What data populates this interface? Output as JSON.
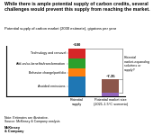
{
  "chart_data": {
    "type": "bar",
    "stacked": true,
    "title": "While there is ample potential supply of carbon credits, several challenges would prevent this supply from reaching the market.",
    "subtitle": "Potential supply of carbon market (2030 estimate), gigatons per year",
    "categories": [
      "Potential\nsupply",
      "Potential market size\n(2021-1.5°C scenario)"
    ],
    "series": [
      {
        "name": "Avoided emissions",
        "values": [
          40,
          null
        ]
      },
      {
        "name": "Behavior change/portfolio",
        "values": [
          18,
          null
        ]
      },
      {
        "name": "Add-on/co-benefits/transformation",
        "values": [
          20,
          null
        ]
      },
      {
        "name": "Technology and removal",
        "values": [
          22,
          null
        ]
      },
      {
        "values": [
          null,
          7
        ]
      },
      {
        "values": [
          null,
          28
        ]
      }
    ],
    "total_labels": [
      "~100",
      "~7-35"
    ],
    "bracket_label": "Potential market-expanding\nsolutions or supply?",
    "notes": "Note: Estimates are illustrative.\nSource: McKinsey & Company analysis",
    "footer": "McKinsey\n& Company",
    "ylim": [
      0,
      105
    ],
    "tick_labels": "x",
    "grid": false
  }
}
